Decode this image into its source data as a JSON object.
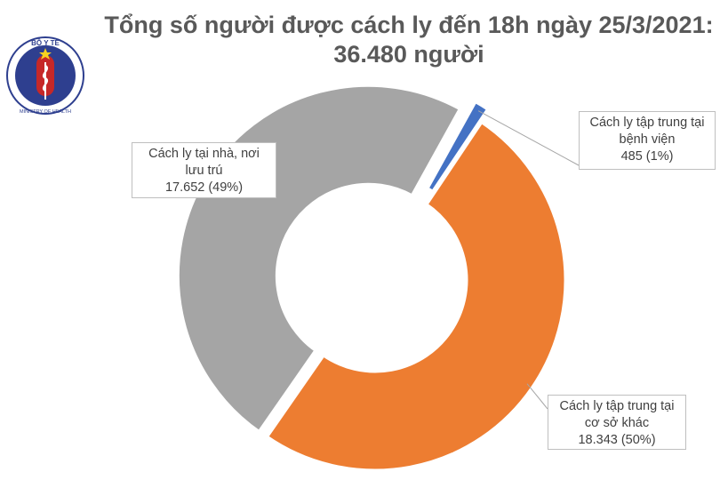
{
  "header": {
    "title_line1": "Tổng số người được cách ly đến 18h ngày 25/3/2021:",
    "title_line2": "36.480 người"
  },
  "logo": {
    "top_text": "BỘ Y TẾ",
    "bottom_text": "MINISTRY OF HEALTH",
    "colors": {
      "ring": "#2e3f8f",
      "inner": "#c62828",
      "star": "#f7d21f"
    }
  },
  "chart_data": {
    "type": "pie",
    "variant": "donut",
    "title": "Tổng số người được cách ly đến 18h ngày 25/3/2021: 36.480 người",
    "total": 36480,
    "slices": [
      {
        "key": "hospital",
        "label_lines": [
          "Cách ly tập trung tại",
          "bệnh viện"
        ],
        "value": 485,
        "value_text": "485 (1%)",
        "percent": 1,
        "color": "#4472c4"
      },
      {
        "key": "other",
        "label_lines": [
          "Cách ly tập trung tại",
          "cơ sở khác"
        ],
        "value": 18343,
        "value_text": "18.343 (50%)",
        "percent": 50,
        "color": "#ed7d31"
      },
      {
        "key": "home",
        "label_lines": [
          "Cách ly tại nhà, nơi",
          "lưu trú"
        ],
        "value": 17652,
        "value_text": "17.652 (49%)",
        "percent": 49,
        "color": "#a5a5a5"
      }
    ],
    "legend": "none",
    "data_labels": "callouts"
  }
}
